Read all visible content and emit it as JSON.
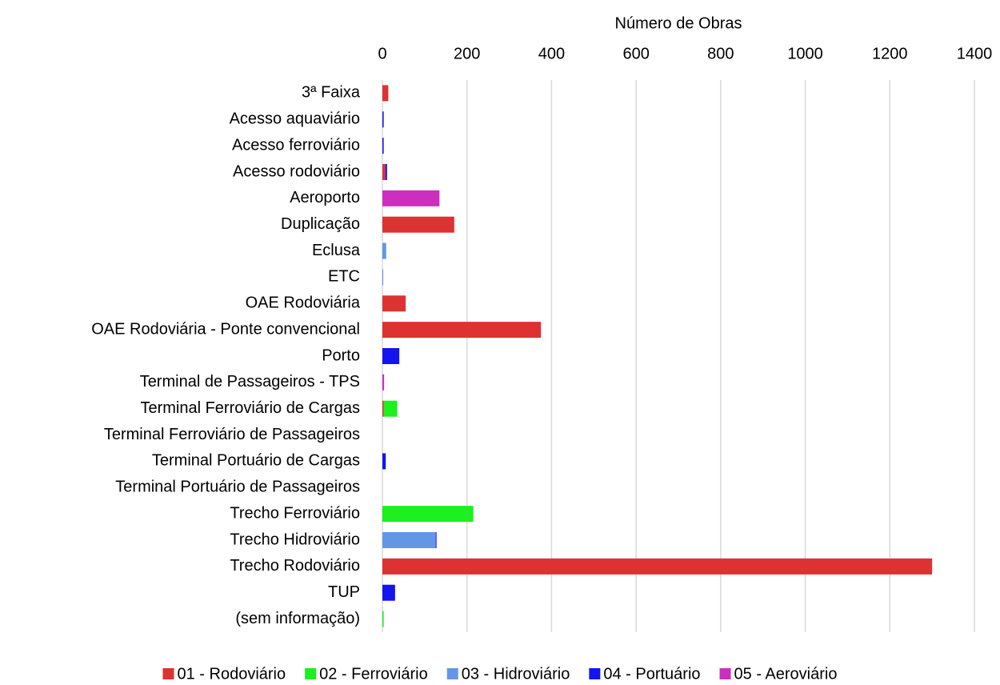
{
  "chart_data": {
    "type": "stacked_barh",
    "x_label": "Número de Obras",
    "categories": [
      "3ª Faixa",
      "Acesso aquaviário",
      "Acesso ferroviário",
      "Acesso rodoviário",
      "Aeroporto",
      "Duplicação",
      "Eclusa",
      "ETC",
      "OAE Rodoviária",
      "OAE Rodoviária - Ponte convencional",
      "Porto",
      "Terminal de Passageiros - TPS",
      "Terminal Ferroviário de Cargas",
      "Terminal Ferroviário de Passageiros",
      "Terminal Portuário de Cargas",
      "Terminal Portuário de Passageiros",
      "Trecho Ferroviário",
      "Trecho Hidroviário",
      "Trecho Rodoviário",
      "TUP",
      "(sem informação)"
    ],
    "series": [
      {
        "name": "01 - Rodoviário",
        "color": "#dc3232",
        "values": [
          14,
          0,
          0,
          7,
          0,
          170,
          0,
          0,
          55,
          375,
          0,
          0,
          3,
          0,
          0,
          0,
          0,
          0,
          1300,
          0,
          0
        ]
      },
      {
        "name": "02 - Ferroviário",
        "color": "#1eef1e",
        "values": [
          0,
          0,
          0,
          0,
          0,
          0,
          0,
          0,
          0,
          0,
          0,
          0,
          32,
          0,
          0,
          0,
          215,
          0,
          0,
          0,
          3
        ]
      },
      {
        "name": "03 - Hidroviário",
        "color": "#6496e8",
        "values": [
          0,
          0,
          0,
          0,
          0,
          0,
          9,
          2,
          0,
          0,
          0,
          0,
          0,
          0,
          0,
          0,
          0,
          126,
          0,
          0,
          0
        ]
      },
      {
        "name": "04 - Portuário",
        "color": "#1414f0",
        "values": [
          0,
          3,
          3,
          4,
          0,
          0,
          0,
          0,
          0,
          0,
          40,
          0,
          0,
          0,
          8,
          0,
          0,
          2,
          0,
          30,
          0
        ]
      },
      {
        "name": "05 - Aeroviário",
        "color": "#cc2ec0",
        "values": [
          0,
          0,
          0,
          0,
          135,
          0,
          0,
          0,
          0,
          0,
          0,
          4,
          0,
          0,
          0,
          0,
          0,
          0,
          0,
          0,
          0
        ]
      }
    ],
    "xlim": [
      0,
      1400
    ],
    "xticks": [
      0,
      200,
      400,
      600,
      800,
      1000,
      1200,
      1400
    ],
    "grid": true,
    "legend": "bottom"
  }
}
